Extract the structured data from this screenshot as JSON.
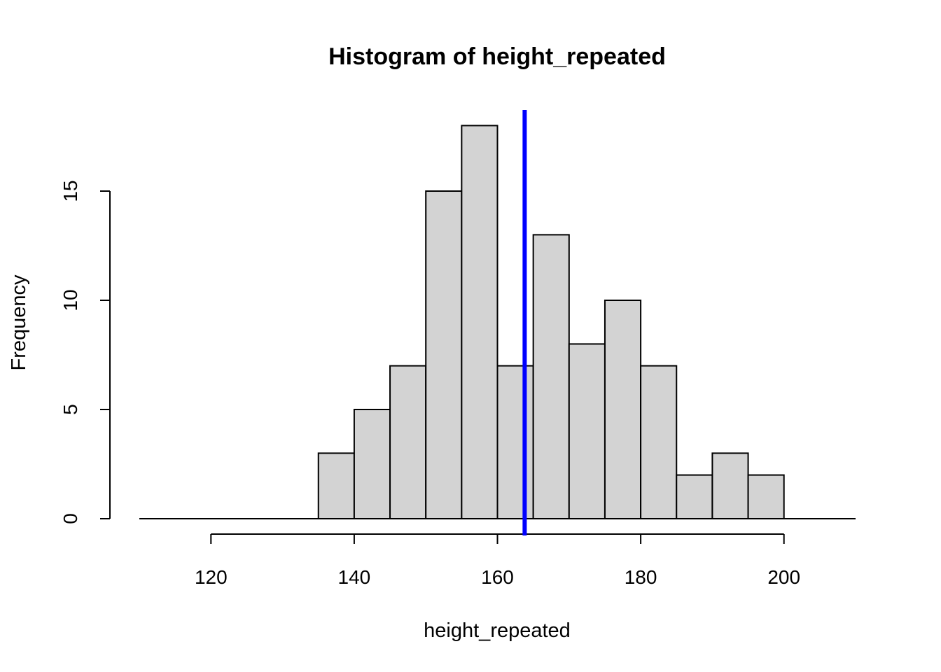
{
  "chart_data": {
    "type": "bar",
    "title": "Histogram of height_repeated",
    "xlabel": "height_repeated",
    "ylabel": "Frequency",
    "bin_width": 5,
    "bins": [
      {
        "start": 135,
        "end": 140,
        "count": 3
      },
      {
        "start": 140,
        "end": 145,
        "count": 5
      },
      {
        "start": 145,
        "end": 150,
        "count": 7
      },
      {
        "start": 150,
        "end": 155,
        "count": 15
      },
      {
        "start": 155,
        "end": 160,
        "count": 18
      },
      {
        "start": 160,
        "end": 165,
        "count": 7
      },
      {
        "start": 165,
        "end": 170,
        "count": 13
      },
      {
        "start": 170,
        "end": 175,
        "count": 8
      },
      {
        "start": 175,
        "end": 180,
        "count": 10
      },
      {
        "start": 180,
        "end": 185,
        "count": 7
      },
      {
        "start": 185,
        "end": 190,
        "count": 2
      },
      {
        "start": 190,
        "end": 195,
        "count": 3
      },
      {
        "start": 195,
        "end": 200,
        "count": 2
      }
    ],
    "xlim": [
      110,
      210
    ],
    "ylim": [
      0,
      18.6
    ],
    "x_ticks": [
      120,
      140,
      160,
      180,
      200
    ],
    "y_ticks": [
      0,
      5,
      10,
      15
    ],
    "vline": {
      "x": 163.8,
      "color": "#0000ff"
    },
    "bar_color": "#d3d3d3",
    "grid": false
  }
}
